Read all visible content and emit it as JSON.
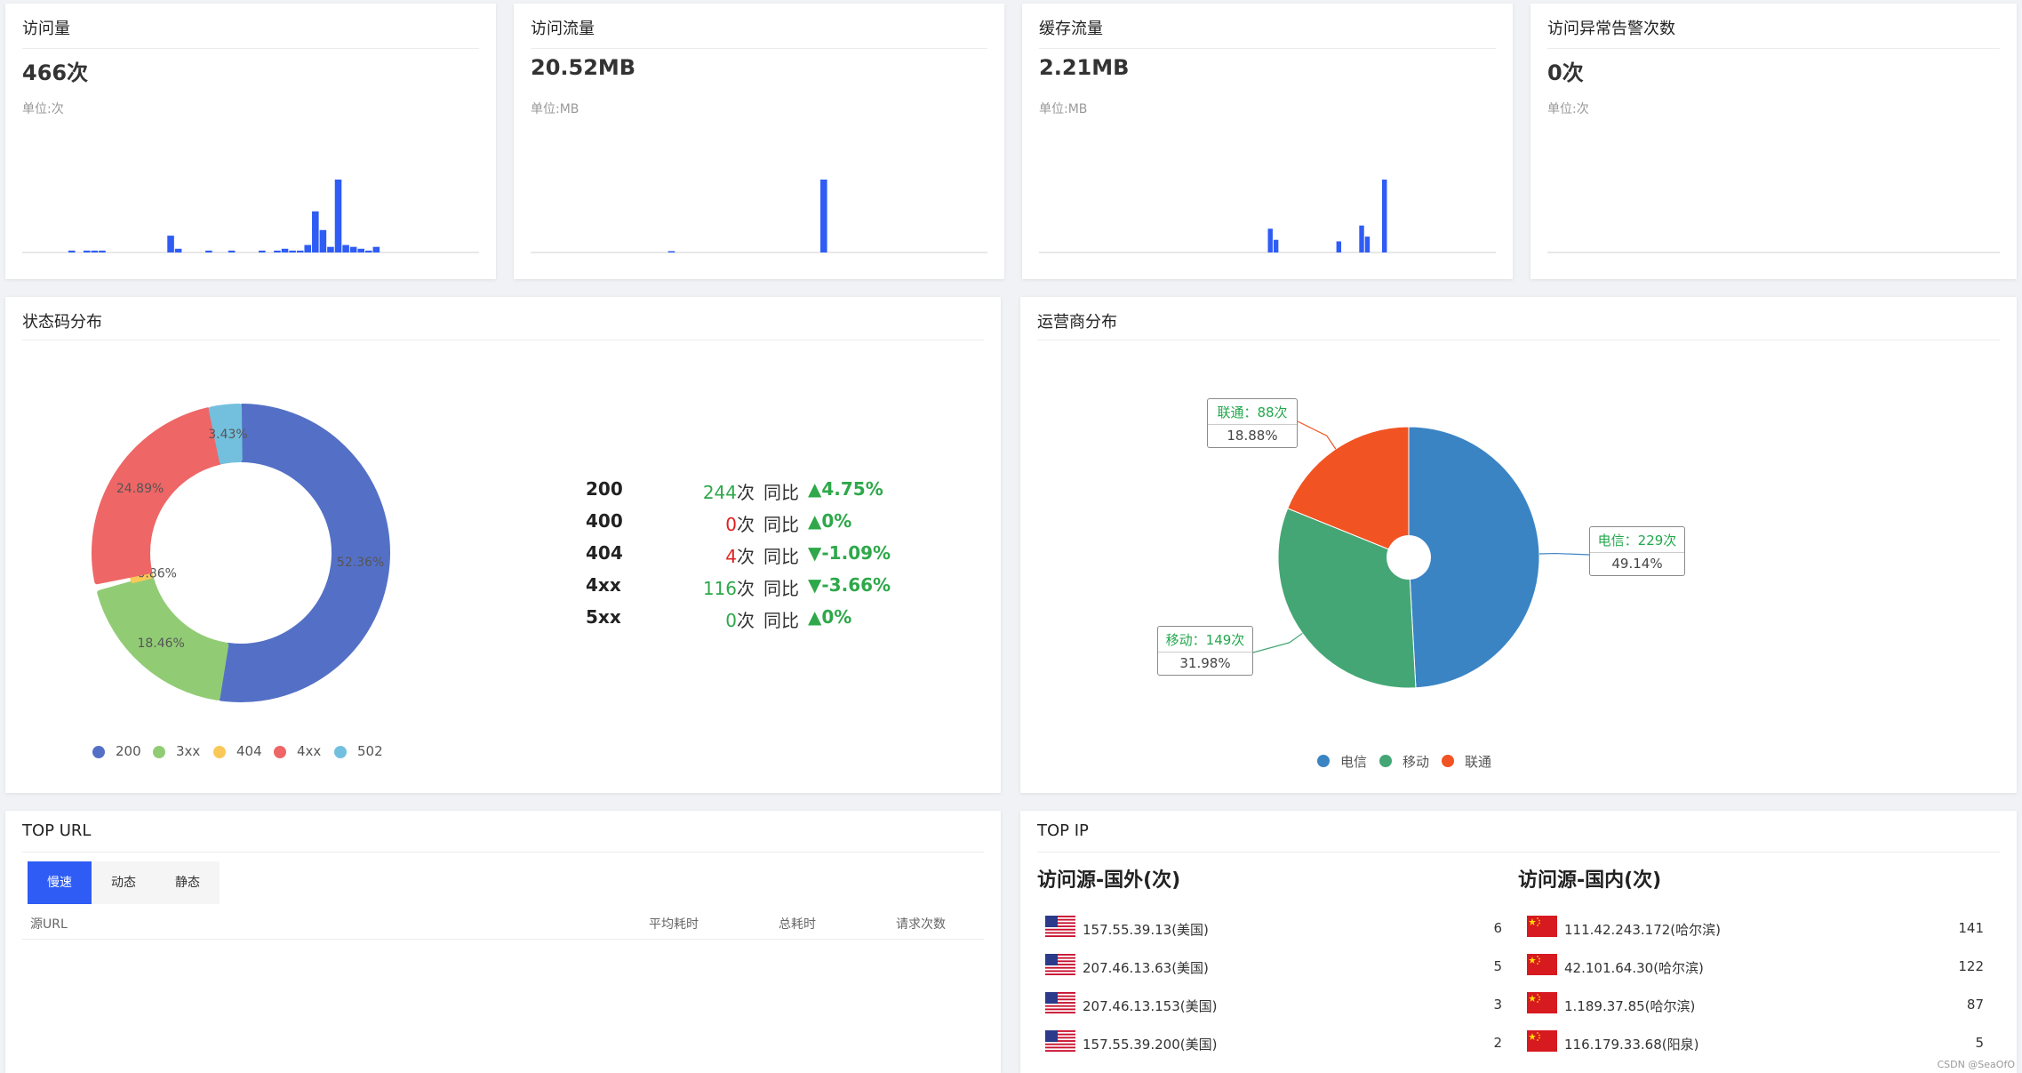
{
  "metrics": [
    {
      "title": "访问量",
      "value": "466次",
      "unit": "单位:次",
      "bars": [
        0,
        0,
        0,
        0,
        0,
        0,
        1,
        0,
        1,
        1,
        1,
        0,
        0,
        0,
        0,
        0,
        0,
        0,
        0,
        9,
        2,
        0,
        0,
        0,
        1,
        0,
        0,
        1,
        0,
        0,
        0,
        1,
        0,
        1,
        2,
        1,
        1,
        4,
        22,
        12,
        3,
        39,
        4,
        3,
        2,
        1,
        3,
        0,
        0,
        0,
        0,
        0,
        0,
        0,
        0,
        0,
        0,
        0,
        0,
        0
      ]
    },
    {
      "title": "访问流量",
      "value": "20.52MB",
      "unit": "单位:MB",
      "bars": [
        0,
        0,
        0,
        0,
        0,
        0,
        0,
        0,
        0,
        0,
        0,
        0,
        0,
        0,
        0,
        0,
        0,
        0,
        1,
        0,
        0,
        0,
        0,
        0,
        0,
        0,
        0,
        0,
        0,
        0,
        0,
        0,
        0,
        0,
        0,
        0,
        0,
        0,
        55,
        0,
        0,
        0,
        0,
        0,
        0,
        0,
        0,
        0,
        0,
        0,
        0,
        0,
        0,
        0,
        0,
        0,
        0,
        0,
        0,
        0
      ]
    },
    {
      "title": "缓存流量",
      "value": "2.21MB",
      "unit": "单位:MB",
      "bars": [
        0,
        0,
        0,
        0,
        0,
        0,
        0,
        0,
        0,
        0,
        0,
        0,
        0,
        0,
        0,
        0,
        0,
        0,
        0,
        0,
        0,
        0,
        0,
        0,
        0,
        0,
        0,
        0,
        0,
        0,
        0,
        0,
        0,
        0,
        0,
        0,
        0,
        0,
        0,
        0,
        15,
        8,
        0,
        0,
        0,
        0,
        0,
        0,
        0,
        0,
        0,
        0,
        7,
        0,
        0,
        0,
        17,
        10,
        0,
        0,
        46,
        0,
        0,
        0,
        0,
        0,
        0,
        0,
        0,
        0,
        0,
        0,
        0,
        0,
        0,
        0,
        0,
        0,
        0,
        0
      ]
    },
    {
      "title": "访问异常告警次数",
      "value": "0次",
      "unit": "单位:次",
      "bars": []
    }
  ],
  "status": {
    "title": "状态码分布",
    "donut": [
      {
        "name": "200",
        "pct": 52.36,
        "label": "52.36%",
        "color": "#5470c6"
      },
      {
        "name": "3xx",
        "pct": 18.46,
        "label": "18.46%",
        "color": "#91cc75"
      },
      {
        "name": "404",
        "pct": 0.86,
        "label": "0.86%",
        "color": "#fac858"
      },
      {
        "name": "4xx",
        "pct": 24.89,
        "label": "24.89%",
        "color": "#ee6666"
      },
      {
        "name": "502",
        "pct": 3.43,
        "label": "3.43%",
        "color": "#73c0de"
      }
    ],
    "rows": [
      {
        "code": "200",
        "count": "244",
        "unit": "次",
        "yoy": "同比",
        "change": "▲4.75%",
        "count_color": "#2ea84a",
        "change_color": "#2ea84a"
      },
      {
        "code": "400",
        "count": "0",
        "unit": "次",
        "yoy": "同比",
        "change": "▲0%",
        "count_color": "#e02020",
        "change_color": "#2ea84a"
      },
      {
        "code": "404",
        "count": "4",
        "unit": "次",
        "yoy": "同比",
        "change": "▼-1.09%",
        "count_color": "#e02020",
        "change_color": "#2ea84a"
      },
      {
        "code": "4xx",
        "count": "116",
        "unit": "次",
        "yoy": "同比",
        "change": "▼-3.66%",
        "count_color": "#2ea84a",
        "change_color": "#2ea84a"
      },
      {
        "code": "5xx",
        "count": "0",
        "unit": "次",
        "yoy": "同比",
        "change": "▲0%",
        "count_color": "#2ea84a",
        "change_color": "#2ea84a"
      }
    ]
  },
  "isp": {
    "title": "运营商分布",
    "slices": [
      {
        "name": "电信",
        "count_label": "电信：229次",
        "pct_label": "49.14%",
        "pct": 49.14,
        "color": "#3a84c4"
      },
      {
        "name": "移动",
        "count_label": "移动：149次",
        "pct_label": "31.98%",
        "pct": 31.98,
        "color": "#45a675"
      },
      {
        "name": "联通",
        "count_label": "联通：88次",
        "pct_label": "18.88%",
        "pct": 18.88,
        "color": "#f25322"
      }
    ]
  },
  "top_url": {
    "title": "TOP URL",
    "tabs": [
      "慢速",
      "动态",
      "静态"
    ],
    "columns": [
      "源URL",
      "平均耗时",
      "总耗时",
      "请求次数"
    ]
  },
  "top_ip": {
    "title": "TOP IP",
    "foreign_heading": "访问源-国外(次)",
    "domestic_heading": "访问源-国内(次)",
    "foreign": [
      {
        "ip": "157.55.39.13(美国)",
        "count": "6"
      },
      {
        "ip": "207.46.13.63(美国)",
        "count": "5"
      },
      {
        "ip": "207.46.13.153(美国)",
        "count": "3"
      },
      {
        "ip": "157.55.39.200(美国)",
        "count": "2"
      }
    ],
    "domestic": [
      {
        "ip": "111.42.243.172(哈尔滨)",
        "count": "141"
      },
      {
        "ip": "42.101.64.30(哈尔滨)",
        "count": "122"
      },
      {
        "ip": "1.189.37.85(哈尔滨)",
        "count": "87"
      },
      {
        "ip": "116.179.33.68(阳泉)",
        "count": "5"
      }
    ]
  },
  "watermark": "CSDN @SeaOfO",
  "colors": {
    "accent": "#2e5cf5",
    "bar": "#2e5cf5"
  }
}
